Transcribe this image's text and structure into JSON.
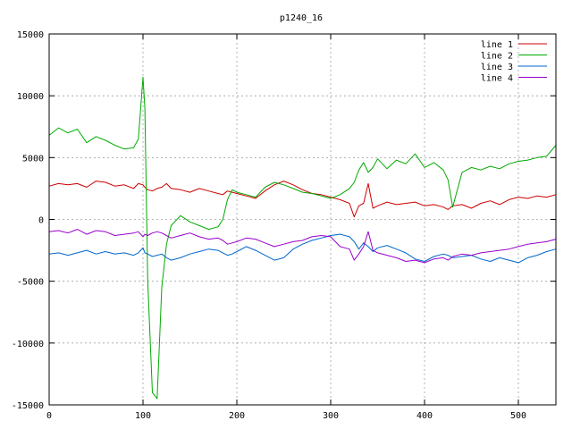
{
  "chart_data": {
    "type": "line",
    "title": "p1240_16",
    "xlabel": "",
    "ylabel": "",
    "xlim": [
      0,
      540
    ],
    "ylim": [
      -15000,
      15000
    ],
    "x_ticks": [
      0,
      100,
      200,
      300,
      400,
      500
    ],
    "y_ticks": [
      -15000,
      -10000,
      -5000,
      0,
      5000,
      10000,
      15000
    ],
    "grid": true,
    "legend_position": "top-right",
    "x": [
      0,
      10,
      20,
      30,
      40,
      50,
      60,
      70,
      80,
      90,
      95,
      100,
      102,
      105,
      110,
      115,
      120,
      125,
      130,
      140,
      150,
      160,
      170,
      180,
      185,
      190,
      195,
      200,
      210,
      220,
      230,
      240,
      250,
      260,
      270,
      280,
      290,
      300,
      310,
      320,
      325,
      330,
      335,
      340,
      345,
      350,
      360,
      370,
      380,
      390,
      400,
      410,
      420,
      425,
      430,
      440,
      450,
      460,
      470,
      480,
      490,
      500,
      510,
      520,
      530,
      540
    ],
    "series": [
      {
        "name": "line 1",
        "color": "#cc0000",
        "values": [
          2700,
          2900,
          2800,
          2900,
          2600,
          3100,
          3000,
          2700,
          2800,
          2500,
          2900,
          2800,
          2600,
          2400,
          2300,
          2500,
          2600,
          2900,
          2500,
          2400,
          2200,
          2500,
          2300,
          2100,
          2000,
          2300,
          2200,
          2100,
          1900,
          1700,
          2300,
          2800,
          3100,
          2800,
          2400,
          2100,
          2000,
          1800,
          1600,
          1300,
          200,
          1100,
          1300,
          2900,
          900,
          1100,
          1400,
          1200,
          1300,
          1400,
          1100,
          1200,
          1000,
          800,
          1100,
          1200,
          900,
          1300,
          1500,
          1200,
          1600,
          1800,
          1700,
          1900,
          1800,
          2000
        ]
      },
      {
        "name": "line 2",
        "color": "#00aa00",
        "values": [
          6800,
          7400,
          7000,
          7300,
          6200,
          6700,
          6400,
          6000,
          5700,
          5800,
          6500,
          11500,
          9000,
          -5000,
          -14000,
          -14500,
          -5500,
          -2000,
          -500,
          300,
          -200,
          -500,
          -800,
          -600,
          0,
          1600,
          2400,
          2200,
          2000,
          1800,
          2600,
          3000,
          2800,
          2500,
          2200,
          2100,
          1900,
          1700,
          2000,
          2500,
          3000,
          4000,
          4600,
          3800,
          4200,
          4900,
          4100,
          4800,
          4500,
          5300,
          4200,
          4600,
          4000,
          3200,
          1000,
          3800,
          4200,
          4000,
          4300,
          4100,
          4500,
          4700,
          4800,
          5000,
          5100,
          6000
        ]
      },
      {
        "name": "line 3",
        "color": "#0066cc",
        "values": [
          -2800,
          -2700,
          -2900,
          -2700,
          -2500,
          -2800,
          -2600,
          -2800,
          -2700,
          -2900,
          -2700,
          -2300,
          -2700,
          -2800,
          -3000,
          -2900,
          -2800,
          -3100,
          -3300,
          -3100,
          -2800,
          -2600,
          -2400,
          -2500,
          -2700,
          -2900,
          -2800,
          -2600,
          -2200,
          -2500,
          -2900,
          -3300,
          -3100,
          -2400,
          -2000,
          -1700,
          -1500,
          -1300,
          -1200,
          -1400,
          -1800,
          -2400,
          -1900,
          -2200,
          -2600,
          -2300,
          -2100,
          -2400,
          -2700,
          -3200,
          -3400,
          -3000,
          -2800,
          -2900,
          -3100,
          -3000,
          -2900,
          -3200,
          -3400,
          -3100,
          -3300,
          -3500,
          -3100,
          -2900,
          -2600,
          -2400
        ]
      },
      {
        "name": "line 4",
        "color": "#9900cc",
        "values": [
          -1000,
          -900,
          -1100,
          -800,
          -1200,
          -900,
          -1000,
          -1300,
          -1200,
          -1100,
          -1000,
          -1400,
          -1200,
          -1300,
          -1100,
          -1000,
          -1100,
          -1300,
          -1500,
          -1300,
          -1100,
          -1400,
          -1600,
          -1500,
          -1700,
          -2000,
          -1900,
          -1800,
          -1500,
          -1600,
          -1900,
          -2200,
          -2000,
          -1800,
          -1700,
          -1400,
          -1300,
          -1400,
          -2200,
          -2400,
          -3300,
          -2800,
          -2200,
          -1000,
          -2500,
          -2700,
          -2900,
          -3100,
          -3400,
          -3300,
          -3500,
          -3200,
          -3100,
          -3300,
          -3000,
          -2800,
          -2900,
          -2700,
          -2600,
          -2500,
          -2400,
          -2200,
          -2000,
          -1900,
          -1800,
          -1600
        ]
      }
    ]
  }
}
